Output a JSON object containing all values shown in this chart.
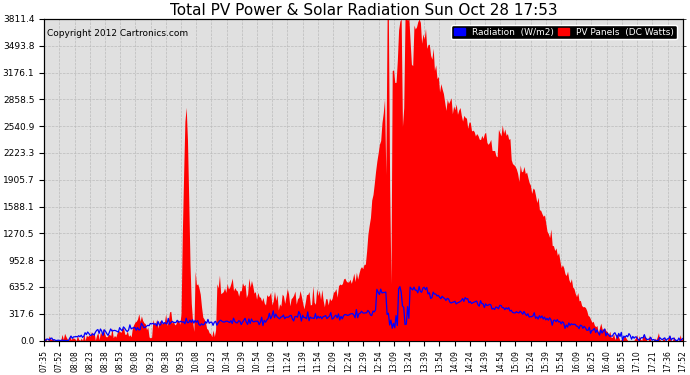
{
  "title": "Total PV Power & Solar Radiation Sun Oct 28 17:53",
  "copyright": "Copyright 2012 Cartronics.com",
  "yticks": [
    0.0,
    317.6,
    635.2,
    952.8,
    1270.5,
    1588.1,
    1905.7,
    2223.3,
    2540.9,
    2858.5,
    3176.1,
    3493.8,
    3811.4
  ],
  "ymax": 3811.4,
  "legend_labels": [
    "Radiation  (W/m2)",
    "PV Panels  (DC Watts)"
  ],
  "bg_color": "#e0e0e0",
  "grid_color": "#bbbbbb",
  "title_fontsize": 11,
  "xtick_labels": [
    "07:35",
    "07:52",
    "08:08",
    "08:23",
    "08:38",
    "08:53",
    "09:08",
    "09:23",
    "09:38",
    "09:53",
    "10:08",
    "10:23",
    "10:34",
    "10:39",
    "10:54",
    "11:09",
    "11:24",
    "11:39",
    "11:54",
    "12:09",
    "12:24",
    "12:39",
    "12:54",
    "13:09",
    "13:24",
    "13:39",
    "13:54",
    "14:09",
    "14:24",
    "14:39",
    "14:54",
    "15:09",
    "15:24",
    "15:39",
    "15:54",
    "16:09",
    "16:25",
    "16:40",
    "16:55",
    "17:10",
    "17:21",
    "17:36",
    "17:52"
  ]
}
